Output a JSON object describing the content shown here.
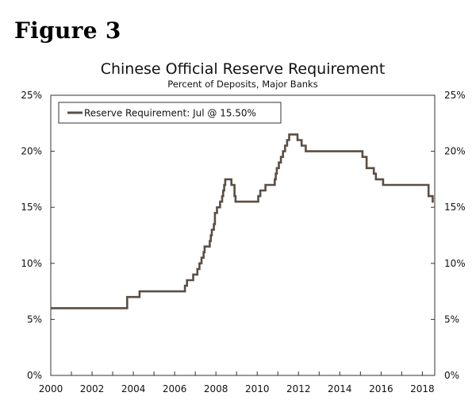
{
  "figure_label": "Figure 3",
  "chart_data": {
    "type": "line",
    "title": "Chinese Official Reserve Requirement",
    "subtitle": "Percent of Deposits, Major Banks",
    "legend": {
      "position": "top-left",
      "entries": [
        "Reserve Requirement: Jul @ 15.50%"
      ]
    },
    "line_color": "#5b4e44",
    "x_axis": {
      "range": [
        2000,
        2018.6
      ],
      "ticks": [
        2000,
        2002,
        2004,
        2006,
        2008,
        2010,
        2012,
        2014,
        2016,
        2018
      ],
      "tick_labels": [
        "2000",
        "2002",
        "2004",
        "2006",
        "2008",
        "2010",
        "2012",
        "2014",
        "2016",
        "2018"
      ]
    },
    "y_axis": {
      "range": [
        0,
        25
      ],
      "ticks": [
        0,
        5,
        10,
        15,
        20,
        25
      ],
      "tick_labels": [
        "0%",
        "5%",
        "10%",
        "15%",
        "20%",
        "25%"
      ],
      "right_tick_labels": [
        "0%",
        "5%",
        "10%",
        "15%",
        "20%",
        "25%"
      ]
    },
    "grid": false,
    "series": [
      {
        "name": "Reserve Requirement: Jul @ 15.50%",
        "step": true,
        "points": [
          [
            2000.0,
            6.0
          ],
          [
            2003.7,
            7.0
          ],
          [
            2004.3,
            7.5
          ],
          [
            2006.5,
            8.0
          ],
          [
            2006.6,
            8.5
          ],
          [
            2006.9,
            9.0
          ],
          [
            2007.1,
            9.5
          ],
          [
            2007.2,
            10.0
          ],
          [
            2007.3,
            10.5
          ],
          [
            2007.4,
            11.0
          ],
          [
            2007.45,
            11.5
          ],
          [
            2007.7,
            12.0
          ],
          [
            2007.75,
            12.5
          ],
          [
            2007.8,
            13.0
          ],
          [
            2007.9,
            13.5
          ],
          [
            2007.95,
            14.5
          ],
          [
            2008.05,
            15.0
          ],
          [
            2008.2,
            15.5
          ],
          [
            2008.3,
            16.0
          ],
          [
            2008.35,
            16.5
          ],
          [
            2008.4,
            17.0
          ],
          [
            2008.45,
            17.5
          ],
          [
            2008.75,
            17.0
          ],
          [
            2008.9,
            16.0
          ],
          [
            2008.95,
            15.5
          ],
          [
            2010.05,
            16.0
          ],
          [
            2010.15,
            16.5
          ],
          [
            2010.4,
            17.0
          ],
          [
            2010.85,
            17.5
          ],
          [
            2010.9,
            18.0
          ],
          [
            2010.95,
            18.5
          ],
          [
            2011.05,
            19.0
          ],
          [
            2011.15,
            19.5
          ],
          [
            2011.25,
            20.0
          ],
          [
            2011.35,
            20.5
          ],
          [
            2011.45,
            21.0
          ],
          [
            2011.55,
            21.5
          ],
          [
            2011.95,
            21.0
          ],
          [
            2012.15,
            20.5
          ],
          [
            2012.35,
            20.0
          ],
          [
            2015.1,
            19.5
          ],
          [
            2015.3,
            18.5
          ],
          [
            2015.65,
            18.0
          ],
          [
            2015.75,
            17.5
          ],
          [
            2016.1,
            17.0
          ],
          [
            2018.3,
            16.0
          ],
          [
            2018.5,
            15.5
          ],
          [
            2018.55,
            15.5
          ]
        ]
      }
    ]
  }
}
